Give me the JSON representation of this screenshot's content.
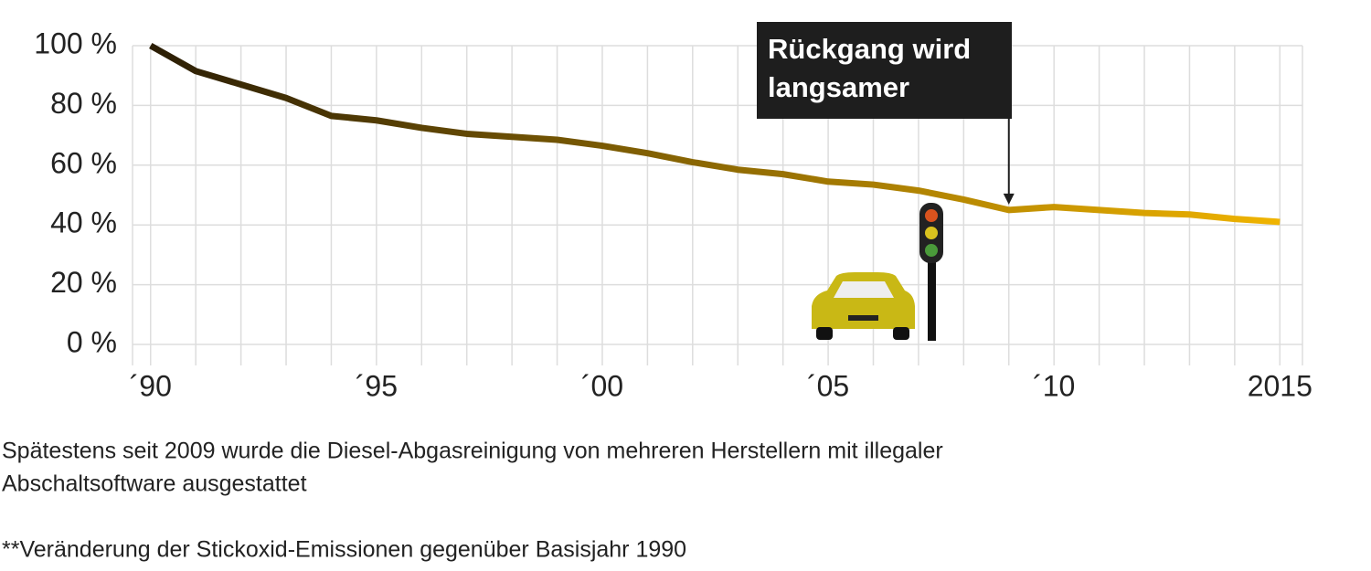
{
  "chart_data": {
    "type": "line",
    "x": [
      1990,
      1991,
      1992,
      1993,
      1994,
      1995,
      1996,
      1997,
      1998,
      1999,
      2000,
      2001,
      2002,
      2003,
      2004,
      2005,
      2006,
      2007,
      2008,
      2009,
      2010,
      2011,
      2012,
      2013,
      2014,
      2015
    ],
    "values": [
      100,
      91.5,
      87,
      82.5,
      76.5,
      75,
      72.5,
      70.5,
      69.5,
      68.5,
      66.5,
      64,
      61,
      58.5,
      57,
      54.5,
      53.5,
      51.5,
      48.5,
      45,
      46,
      45,
      44,
      43.5,
      42,
      41
    ],
    "color_start": "#2a1d05",
    "color_end": "#f0b400",
    "xlim": [
      1989.6,
      2015.5
    ],
    "ylim": [
      0,
      100
    ],
    "xticks": [
      {
        "value": 1990,
        "label": "´90"
      },
      {
        "value": 1995,
        "label": "´95"
      },
      {
        "value": 2000,
        "label": "´00"
      },
      {
        "value": 2005,
        "label": "´05"
      },
      {
        "value": 2010,
        "label": "´10"
      },
      2015
    ],
    "xminorticks": [
      1991,
      1992,
      1993,
      1994,
      1996,
      1997,
      1998,
      1999,
      2001,
      2002,
      2003,
      2004,
      2006,
      2007,
      2008,
      2009,
      2011,
      2012,
      2013,
      2014
    ],
    "yticks": [
      {
        "value": 0,
        "label": "0 %"
      },
      {
        "value": 20,
        "label": "20 %"
      },
      {
        "value": 40,
        "label": "40 %"
      },
      {
        "value": 60,
        "label": "60 %"
      },
      {
        "value": 80,
        "label": "80 %"
      },
      {
        "value": 100,
        "label": "100 %"
      }
    ],
    "grid": true,
    "annotation": {
      "x": 2009,
      "lines": [
        "Rückgang wird",
        "langsamer"
      ]
    },
    "notes": [
      "Spätestens seit 2009 wurde die Diesel-Abgasreinigung von mehreren Herstellern mit illegaler",
      "Abschaltsoftware ausgestattet",
      "**Veränderung der Stickoxid-Emissionen gegenüber Basisjahr 1990"
    ]
  }
}
